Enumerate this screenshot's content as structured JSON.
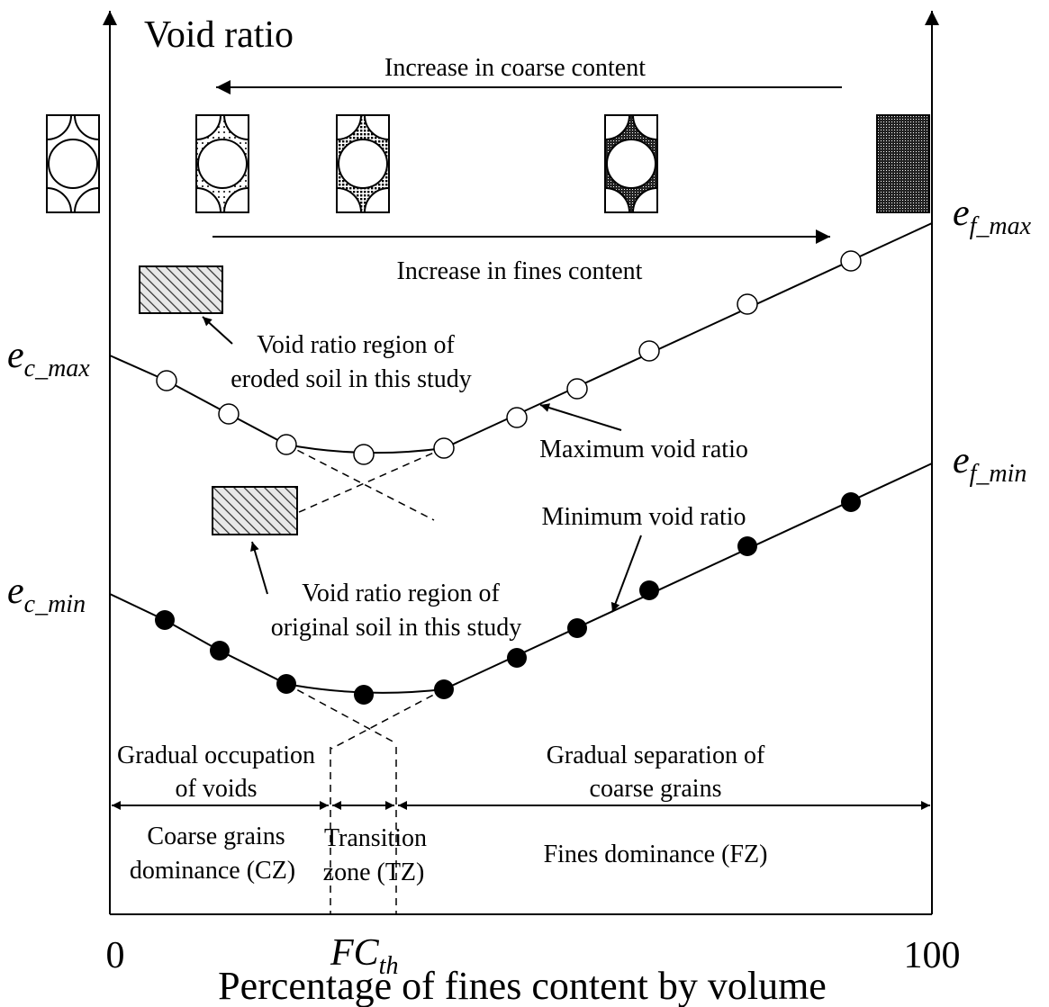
{
  "axis": {
    "y_label": "Void ratio",
    "x_label": "Percentage of fines content by volume",
    "x_start": "0",
    "x_end": "100",
    "threshold": {
      "base": "FC",
      "sub": "th"
    }
  },
  "arrows": {
    "coarse": "Increase in coarse content",
    "fines": "Increase in fines content"
  },
  "curve_labels": {
    "e_c_max": {
      "base": "e",
      "sub": "c_max"
    },
    "e_c_min": {
      "base": "e",
      "sub": "c_min"
    },
    "e_f_max": {
      "base": "e",
      "sub": "f_max"
    },
    "e_f_min": {
      "base": "e",
      "sub": "f_min"
    },
    "max": "Maximum void ratio",
    "min": "Minimum void ratio"
  },
  "regions": {
    "eroded": [
      "Void ratio region of",
      "eroded soil in this study"
    ],
    "original": [
      "Void ratio region of",
      "original soil in this study"
    ]
  },
  "stages": {
    "occupation": [
      "Gradual occupation",
      "of voids"
    ],
    "separation": [
      "Gradual separation of",
      "coarse grains"
    ]
  },
  "zones": {
    "cz": [
      "Coarse grains",
      "dominance (CZ)"
    ],
    "tz": [
      "Transition",
      "zone (TZ)"
    ],
    "fz": "Fines dominance (FZ)"
  }
}
